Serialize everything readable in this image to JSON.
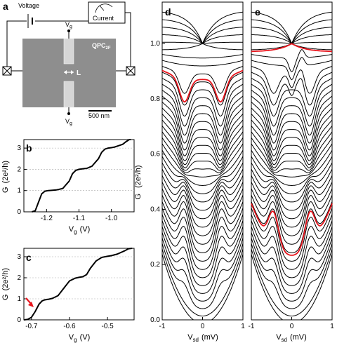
{
  "panel_a": {
    "letter": "a",
    "voltage_label": "Voltage",
    "current_label": "Current",
    "vg_top": "V",
    "vg_top_sub": "g",
    "vg_bottom": "V",
    "vg_bottom_sub": "g",
    "device_label": "QPC",
    "device_sub": "2F",
    "length_label": "L",
    "scalebar_label": "500 nm"
  },
  "chart_data": [
    {
      "panel": "b",
      "type": "line",
      "ylabel": "G",
      "ylabel_unit": "(2e²/h)",
      "xlabel": "V",
      "xlabel_sub": "g",
      "xlabel_unit": "(V)",
      "xlim": [
        -1.27,
        -0.93
      ],
      "ylim": [
        0,
        3.4
      ],
      "xticks": [
        -1.2,
        -1.1,
        -1.0
      ],
      "xtick_labels": [
        "-1.2",
        "-1.1",
        "-1.0"
      ],
      "yticks": [
        0,
        1,
        2,
        3
      ],
      "ytick_labels": [
        "0",
        "1",
        "2",
        "3"
      ],
      "grid": "horizontal-dashed",
      "series": [
        {
          "values_x": [
            -1.245,
            -1.235,
            -1.225,
            -1.215,
            -1.205,
            -1.195,
            -1.185,
            -1.17,
            -1.15,
            -1.13,
            -1.12,
            -1.11,
            -1.1,
            -1.09,
            -1.075,
            -1.06,
            -1.04,
            -1.03,
            -1.02,
            -1.01,
            -1.0,
            -0.99,
            -0.98,
            -0.965,
            -0.955,
            -0.945,
            -0.94
          ],
          "values_y": [
            0.0,
            0.05,
            0.45,
            0.85,
            0.97,
            1.0,
            1.01,
            1.03,
            1.1,
            1.45,
            1.8,
            1.95,
            2.0,
            2.02,
            2.05,
            2.15,
            2.5,
            2.8,
            2.95,
            3.0,
            3.02,
            3.05,
            3.1,
            3.18,
            3.3,
            3.4,
            3.4
          ]
        }
      ]
    },
    {
      "panel": "c",
      "type": "line",
      "ylabel": "G",
      "ylabel_unit": "(2e²/h)",
      "xlabel": "V",
      "xlabel_sub": "g",
      "xlabel_unit": "(V)",
      "xlim": [
        -0.72,
        -0.43
      ],
      "ylim": [
        0,
        3.4
      ],
      "xticks": [
        -0.7,
        -0.6,
        -0.5
      ],
      "xtick_labels": [
        "-0.7",
        "-0.6",
        "-0.5"
      ],
      "yticks": [
        0,
        1,
        2,
        3
      ],
      "ytick_labels": [
        "0",
        "1",
        "2",
        "3"
      ],
      "grid": "horizontal-dashed",
      "annotation": "red arrow at 0.7 anomaly",
      "series": [
        {
          "values_x": [
            -0.72,
            -0.71,
            -0.7,
            -0.69,
            -0.68,
            -0.672,
            -0.665,
            -0.655,
            -0.645,
            -0.63,
            -0.615,
            -0.6,
            -0.585,
            -0.575,
            -0.565,
            -0.555,
            -0.545,
            -0.53,
            -0.515,
            -0.5,
            -0.49,
            -0.475,
            -0.465,
            -0.455,
            -0.445,
            -0.435
          ],
          "values_y": [
            0.0,
            0.02,
            0.12,
            0.4,
            0.75,
            0.9,
            0.95,
            0.98,
            1.02,
            1.15,
            1.5,
            1.85,
            1.98,
            2.02,
            2.05,
            2.15,
            2.45,
            2.8,
            2.97,
            3.02,
            3.05,
            3.12,
            3.2,
            3.28,
            3.38,
            3.42
          ]
        }
      ]
    },
    {
      "panel": "d",
      "type": "line",
      "ylabel": "G",
      "ylabel_unit": "(2e²/h)",
      "xlabel": "V",
      "xlabel_sub": "sd",
      "xlabel_unit": "(mV)",
      "xlim": [
        -1,
        1
      ],
      "ylim": [
        0,
        1.15
      ],
      "xticks": [
        -1,
        0,
        1
      ],
      "xtick_labels": [
        "-1",
        "0",
        "1"
      ],
      "yticks": [
        0.0,
        0.2,
        0.4,
        0.6,
        0.8,
        1.0
      ],
      "ytick_labels": [
        "0.0",
        "0.2",
        "0.4",
        "0.6",
        "0.8",
        "1.0"
      ],
      "trace_count": 40,
      "highlighted_trace_g0": 0.87,
      "highlight_color": "#e8141c"
    },
    {
      "panel": "e",
      "type": "line",
      "ylabel": "",
      "xlabel": "V",
      "xlabel_sub": "sd",
      "xlabel_unit": "(mV)",
      "xlim": [
        -1,
        1
      ],
      "ylim": [
        0,
        1.15
      ],
      "xticks": [
        -1,
        0,
        1
      ],
      "xtick_labels": [
        "-1",
        "0",
        "1"
      ],
      "trace_count": 40,
      "highlighted_trace_g0": [
        0.97,
        0.25
      ],
      "highlight_color": "#e8141c"
    }
  ]
}
